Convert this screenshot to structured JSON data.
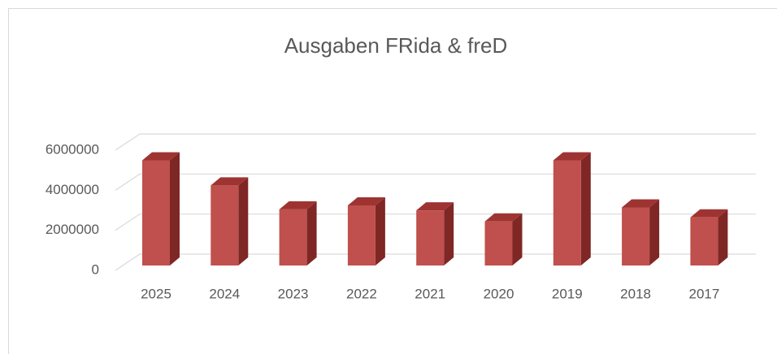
{
  "chart_data": {
    "type": "bar3d",
    "title": "Ausgaben FRida & freD",
    "categories": [
      "2025",
      "2024",
      "2023",
      "2022",
      "2021",
      "2020",
      "2019",
      "2018",
      "2017"
    ],
    "values": [
      5250000,
      4000000,
      2800000,
      3000000,
      2750000,
      2200000,
      5250000,
      2900000,
      2400000
    ],
    "color": "#c0504d",
    "ylim": [
      0,
      6000000
    ],
    "yticks": [
      0,
      2000000,
      4000000,
      6000000
    ],
    "grid": true
  }
}
